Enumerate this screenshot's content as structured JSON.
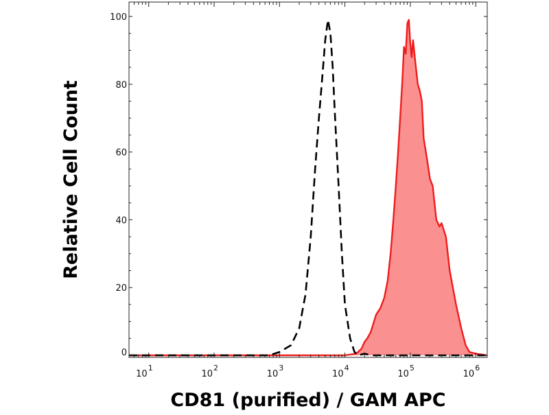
{
  "chart_data": {
    "type": "area",
    "title": "",
    "xlabel": "CD81 (purified) / GAM APC",
    "ylabel": "Relative Cell Count",
    "x_scale": "log",
    "xlim": [
      5,
      1500000
    ],
    "ylim": [
      0,
      100
    ],
    "y_ticks": [
      0,
      20,
      40,
      60,
      80,
      100
    ],
    "x_ticks": [
      {
        "base": "10",
        "exp": "1",
        "value": 10
      },
      {
        "base": "10",
        "exp": "2",
        "value": 100
      },
      {
        "base": "10",
        "exp": "3",
        "value": 1000
      },
      {
        "base": "10",
        "exp": "4",
        "value": 10000
      },
      {
        "base": "10",
        "exp": "5",
        "value": 100000
      },
      {
        "base": "10",
        "exp": "6",
        "value": 1000000
      }
    ],
    "grid": false,
    "series": [
      {
        "style": "dashed",
        "color": "#000000",
        "fill": false,
        "x": [
          5,
          700,
          1000,
          1500,
          2000,
          2500,
          3000,
          3500,
          4000,
          4500,
          5000,
          5500,
          6000,
          6500,
          7000,
          8000,
          9000,
          10000,
          12000,
          14000,
          16000,
          20000,
          25000,
          1500000
        ],
        "y": [
          0,
          0,
          1,
          3,
          8,
          18,
          35,
          55,
          70,
          82,
          93,
          99,
          95,
          85,
          72,
          50,
          30,
          15,
          5,
          1,
          0,
          0.5,
          0,
          0
        ]
      },
      {
        "style": "solid",
        "color": "#ee1c1c",
        "fill": true,
        "fill_color": "#fb9090",
        "x": [
          5,
          10000,
          15000,
          18000,
          20000,
          22000,
          25000,
          30000,
          35000,
          40000,
          45000,
          50000,
          55000,
          60000,
          65000,
          70000,
          75000,
          80000,
          85000,
          90000,
          95000,
          100000,
          105000,
          110000,
          120000,
          130000,
          140000,
          150000,
          160000,
          180000,
          200000,
          220000,
          250000,
          280000,
          300000,
          350000,
          400000,
          500000,
          600000,
          700000,
          800000,
          1000000,
          1500000
        ],
        "y": [
          0,
          0,
          0.5,
          2,
          4,
          5,
          7,
          12,
          14,
          17,
          22,
          30,
          40,
          50,
          60,
          70,
          80,
          91,
          89,
          98,
          99,
          92,
          88,
          93,
          86,
          80,
          78,
          75,
          64,
          58,
          52,
          50,
          40,
          38,
          39,
          35,
          25,
          15,
          8,
          3,
          1,
          0.5,
          0
        ]
      }
    ]
  }
}
